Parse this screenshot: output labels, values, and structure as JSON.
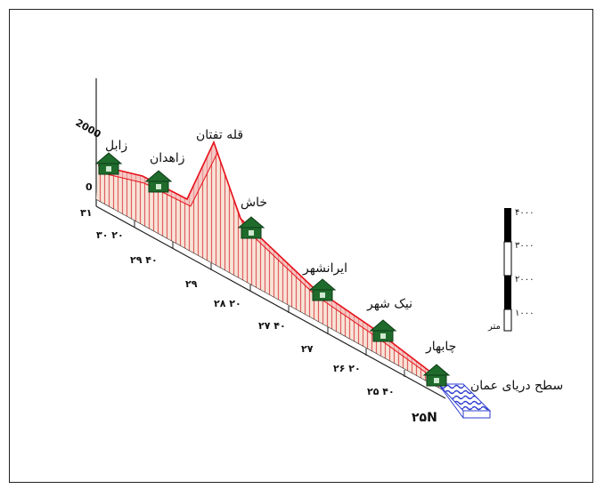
{
  "diagram": {
    "elevation_axis_label": "2000",
    "elevation_zero_label": "0",
    "place_labels": [
      {
        "id": "zabol",
        "text": "زابل"
      },
      {
        "id": "zahedan",
        "text": "زاهدان"
      },
      {
        "id": "taftan",
        "text": "قله تفتان"
      },
      {
        "id": "khash",
        "text": "خاش"
      },
      {
        "id": "iranshahr",
        "text": "ایرانشهر"
      },
      {
        "id": "nikshahr",
        "text": "نیک شهر"
      },
      {
        "id": "chabahar",
        "text": "چابهار"
      },
      {
        "id": "sea",
        "text": "سطح دریای عمان"
      }
    ],
    "latitude_ticks": [
      "۳۱",
      "۳۰ ۲۰",
      "۲۹ ۴۰",
      "۲۹",
      "۲۸ ۲۰",
      "۲۷ ۴۰",
      "۲۷",
      "۲۶ ۲۰",
      "۲۵ ۴۰",
      "۲۵N"
    ],
    "scale_bar": {
      "labels": [
        "۴۰۰۰",
        "۳۰۰۰",
        "۲۰۰۰",
        "۱۰۰۰",
        "متر"
      ]
    },
    "colors": {
      "profile_line": "#e8101a",
      "profile_fill": "#f6d6c6",
      "hatch": "#e05050",
      "house": "#1f6b2c",
      "sea": "#3b49d6"
    }
  }
}
